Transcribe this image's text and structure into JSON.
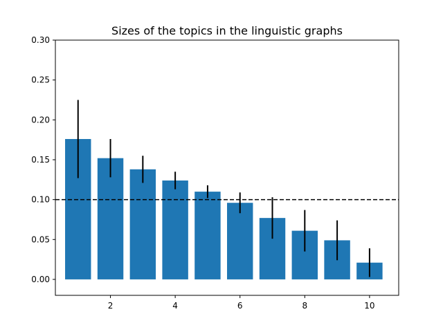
{
  "chart_data": {
    "type": "bar",
    "title": "Sizes of the topics in the linguistic graphs",
    "xlabel": "",
    "ylabel": "",
    "x": [
      1,
      2,
      3,
      4,
      5,
      6,
      7,
      8,
      9,
      10
    ],
    "values": [
      0.176,
      0.152,
      0.138,
      0.124,
      0.11,
      0.096,
      0.077,
      0.061,
      0.049,
      0.021
    ],
    "errors": [
      0.049,
      0.024,
      0.017,
      0.011,
      0.008,
      0.013,
      0.026,
      0.026,
      0.025,
      0.018
    ],
    "reference_line": {
      "y": 0.1,
      "style": "dashed",
      "color": "#000000"
    },
    "xlim": [
      0.3,
      10.9
    ],
    "ylim": [
      -0.02,
      0.3
    ],
    "xticks": [
      2,
      4,
      6,
      8,
      10
    ],
    "xtick_labels": [
      "2",
      "4",
      "6",
      "8",
      "10"
    ],
    "yticks": [
      0.0,
      0.05,
      0.1,
      0.15,
      0.2,
      0.25,
      0.3
    ],
    "ytick_labels": [
      "0.00",
      "0.05",
      "0.10",
      "0.15",
      "0.20",
      "0.25",
      "0.30"
    ],
    "grid": false,
    "bar_color": "#1f77b4",
    "error_color": "#000000"
  }
}
